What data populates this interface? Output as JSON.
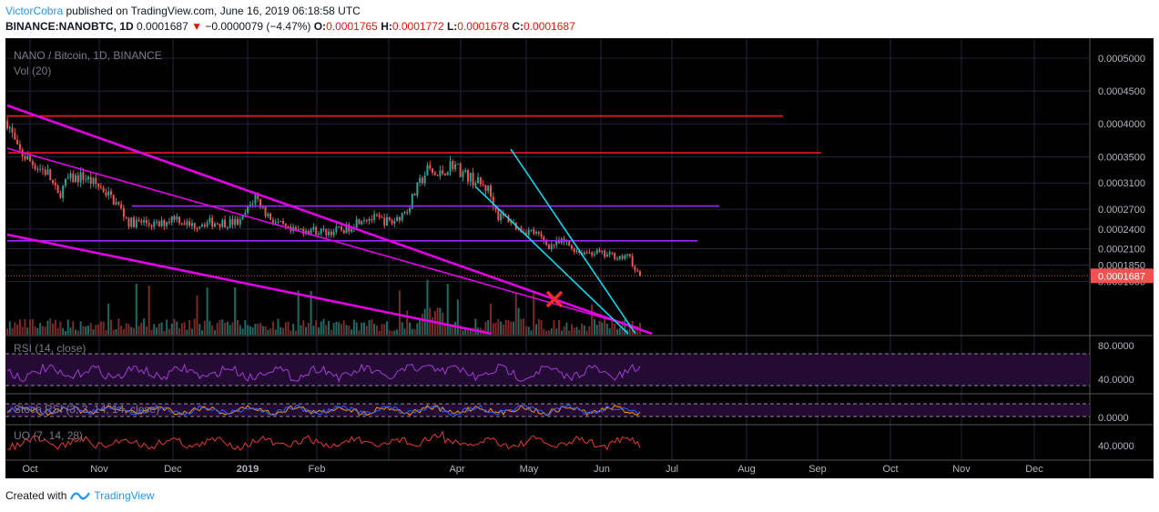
{
  "header": {
    "author": "VictorCobra",
    "published_text": "published on TradingView.com, June 16, 2019 06:18:58 UTC",
    "symbol": "BINANCE:NANOBTC, 1D",
    "last": "0.0001687",
    "change": "−0.0000079 (−4.47%)",
    "o_label": "O:",
    "o": "0.0001765",
    "h_label": "H:",
    "h": "0.0001772",
    "l_label": "L:",
    "l": "0.0001678",
    "c_label": "C:",
    "c": "0.0001687"
  },
  "footer": {
    "created_with": "Created with",
    "brand": "TradingView"
  },
  "colors": {
    "background": "#000000",
    "up": "#26a69a",
    "down": "#ef5350",
    "magenta": "#e100e6",
    "cyan": "#00e5ff",
    "resistance": "#ff1a1a",
    "purple_line": "#9c27ff",
    "rsi": "#a23bd6",
    "uo": "#e53935",
    "stoch_k": "#2962ff",
    "stoch_d": "#ff9800",
    "price_tag": "#ef5350"
  },
  "chart_data": {
    "type": "candlestick",
    "pane_title": "NANO / Bitcoin, 1D, BINANCE",
    "volume_label": "Vol (20)",
    "price_axis_ticks": [
      "0.0005000",
      "0.0004500",
      "0.0004000",
      "0.0003500",
      "0.0003100",
      "0.0002700",
      "0.0002400",
      "0.0002100",
      "0.0001850",
      "0.0001600"
    ],
    "price_tick_values": [
      0.0005,
      0.00045,
      0.0004,
      0.00035,
      0.00031,
      0.00027,
      0.00024,
      0.00021,
      0.000185,
      0.00016
    ],
    "last_price_tag": "0.0001687",
    "last_price": 0.0001687,
    "time_axis": [
      "Oct",
      "Nov",
      "Dec",
      "2019",
      "Feb",
      "Apr",
      "May",
      "Jun",
      "Jul",
      "Aug",
      "Sep",
      "Oct",
      "Nov",
      "Dec"
    ],
    "price_path": [
      [
        0,
        0.000405
      ],
      [
        4,
        0.00036
      ],
      [
        10,
        0.00034
      ],
      [
        16,
        0.000325
      ],
      [
        20,
        0.00029
      ],
      [
        24,
        0.000315
      ],
      [
        30,
        0.00032
      ],
      [
        38,
        0.0003
      ],
      [
        44,
        0.000275
      ],
      [
        48,
        0.00025
      ],
      [
        54,
        0.00025
      ],
      [
        60,
        0.000245
      ],
      [
        66,
        0.00026
      ],
      [
        72,
        0.000245
      ],
      [
        78,
        0.00025
      ],
      [
        85,
        0.00025
      ],
      [
        92,
        0.00025
      ],
      [
        98,
        0.00029
      ],
      [
        102,
        0.000265
      ],
      [
        106,
        0.00025
      ],
      [
        112,
        0.000235
      ],
      [
        118,
        0.00024
      ],
      [
        126,
        0.000235
      ],
      [
        134,
        0.00024
      ],
      [
        140,
        0.000258
      ],
      [
        146,
        0.000255
      ],
      [
        152,
        0.00025
      ],
      [
        158,
        0.00027
      ],
      [
        163,
        0.00031
      ],
      [
        166,
        0.00033
      ],
      [
        170,
        0.00032
      ],
      [
        176,
        0.00034
      ],
      [
        180,
        0.000325
      ],
      [
        186,
        0.00031
      ],
      [
        190,
        0.0003
      ],
      [
        194,
        0.00026
      ],
      [
        198,
        0.000255
      ],
      [
        202,
        0.00024
      ],
      [
        208,
        0.000235
      ],
      [
        214,
        0.000215
      ],
      [
        220,
        0.00022
      ],
      [
        226,
        0.000205
      ],
      [
        232,
        0.000205
      ],
      [
        236,
        0.0002
      ],
      [
        240,
        0.0002
      ],
      [
        244,
        0.000195
      ],
      [
        246,
        0.0002
      ],
      [
        248,
        0.000175
      ],
      [
        250,
        0.0001687
      ]
    ],
    "resistance_lines": [
      0.000412,
      0.000356
    ],
    "range_lines": [
      0.000275,
      0.000222
    ],
    "marker": "x",
    "indicators": [
      {
        "name": "RSI (14, close)",
        "ticks": [
          "80.0000",
          "40.0000"
        ]
      },
      {
        "name": "Stoch RSI (3, 3, 14, 14, close)",
        "ticks": [
          "0.0000"
        ]
      },
      {
        "name": "UO (7, 14, 28)",
        "ticks": [
          "40.0000"
        ]
      }
    ]
  }
}
